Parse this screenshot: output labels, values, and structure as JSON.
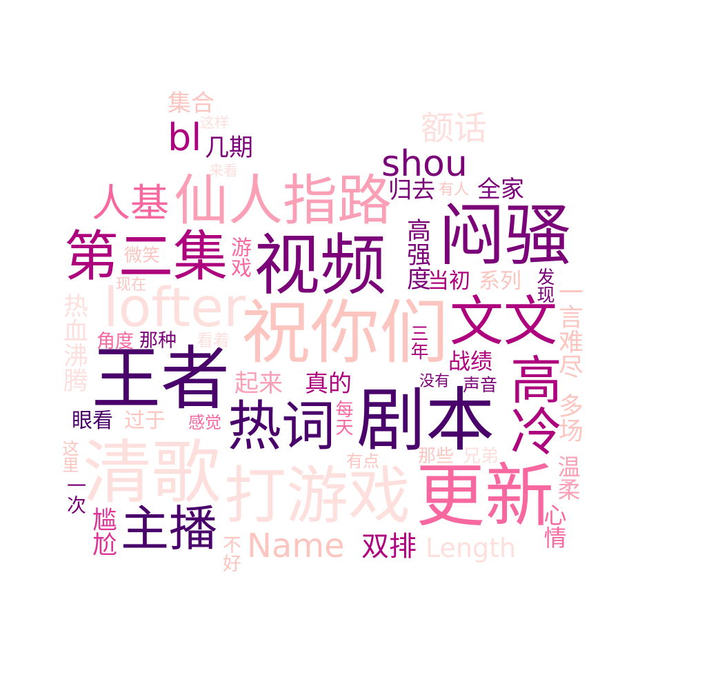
{
  "palette": {
    "c1": "#49006a",
    "c2": "#7a0177",
    "c3": "#ae017e",
    "c4": "#dd3497",
    "c5": "#f768a1",
    "c6": "#fa9fb5",
    "c7": "#fcc5c0",
    "c8": "#fde0dd"
  },
  "words": [
    {
      "text": "仙人指路",
      "color": "c6"
    },
    {
      "text": "视频",
      "color": "c2"
    },
    {
      "text": "闷骚",
      "color": "c2"
    },
    {
      "text": "第二集",
      "color": "c3"
    },
    {
      "text": "lofter",
      "color": "c8"
    },
    {
      "text": "祝你们",
      "color": "c7"
    },
    {
      "text": "文文",
      "color": "c3"
    },
    {
      "text": "王者",
      "color": "c1"
    },
    {
      "text": "热词",
      "color": "c1"
    },
    {
      "text": "剧本",
      "color": "c1"
    },
    {
      "text": "高冷",
      "color": "c3"
    },
    {
      "text": "清歌",
      "color": "c8"
    },
    {
      "text": "打游戏",
      "color": "c8"
    },
    {
      "text": "更新",
      "color": "c5"
    },
    {
      "text": "主播",
      "color": "c1"
    },
    {
      "text": "Name",
      "color": "c7"
    },
    {
      "text": "双排",
      "color": "c3"
    },
    {
      "text": "Length",
      "color": "c8"
    },
    {
      "text": "人基",
      "color": "c5"
    },
    {
      "text": "shou",
      "color": "c2"
    },
    {
      "text": "bl",
      "color": "c3"
    },
    {
      "text": "额话",
      "color": "c8"
    },
    {
      "text": "几期",
      "color": "c2"
    },
    {
      "text": "集合",
      "color": "c7"
    },
    {
      "text": "这样",
      "color": "c8"
    },
    {
      "text": "来看",
      "color": "c8"
    },
    {
      "text": "归去",
      "color": "c2"
    },
    {
      "text": "有人",
      "color": "c7"
    },
    {
      "text": "全家",
      "color": "c2"
    },
    {
      "text": "高强度",
      "color": "c2"
    },
    {
      "text": "当初",
      "color": "c3"
    },
    {
      "text": "系列",
      "color": "c7"
    },
    {
      "text": "发现",
      "color": "c2"
    },
    {
      "text": "一言难尽",
      "color": "c7"
    },
    {
      "text": "微笑",
      "color": "c7"
    },
    {
      "text": "游戏",
      "color": "c5"
    },
    {
      "text": "现在",
      "color": "c7"
    },
    {
      "text": "热血沸腾",
      "color": "c8"
    },
    {
      "text": "角度",
      "color": "c5"
    },
    {
      "text": "那种",
      "color": "c2"
    },
    {
      "text": "看着",
      "color": "c8"
    },
    {
      "text": "三年",
      "color": "c3"
    },
    {
      "text": "战绩",
      "color": "c3"
    },
    {
      "text": "起来",
      "color": "c6"
    },
    {
      "text": "真的",
      "color": "c3"
    },
    {
      "text": "没有",
      "color": "c2"
    },
    {
      "text": "声音",
      "color": "c2"
    },
    {
      "text": "眼看",
      "color": "c1"
    },
    {
      "text": "过于",
      "color": "c7"
    },
    {
      "text": "感觉",
      "color": "c5"
    },
    {
      "text": "每天",
      "color": "c5"
    },
    {
      "text": "多场",
      "color": "c7"
    },
    {
      "text": "这里",
      "color": "c7"
    },
    {
      "text": "有点",
      "color": "c7"
    },
    {
      "text": "那些",
      "color": "c7"
    },
    {
      "text": "兄弟",
      "color": "c8"
    },
    {
      "text": "一次",
      "color": "c2"
    },
    {
      "text": "温柔",
      "color": "c6"
    },
    {
      "text": "尴尬",
      "color": "c4"
    },
    {
      "text": "心情",
      "color": "c5"
    },
    {
      "text": "不好",
      "color": "c7"
    }
  ]
}
